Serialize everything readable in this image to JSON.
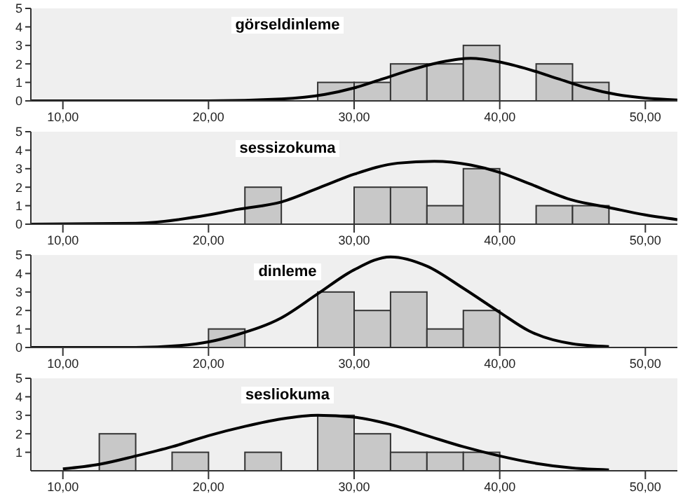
{
  "chart_data": [
    {
      "type": "histogram",
      "title": "görseldinleme",
      "bins": [
        27.5,
        30,
        32.5,
        35,
        37.5,
        40,
        42.5,
        45,
        47.5
      ],
      "values": [
        1,
        1,
        2,
        2,
        3,
        0,
        2,
        1
      ],
      "color": "#c8c8c8",
      "series": [
        {
          "type": "line",
          "color": "#000000",
          "x": [
            7.8,
            20,
            25,
            28,
            30,
            32,
            34,
            36,
            38,
            40,
            42,
            44,
            46,
            48,
            50,
            52.2
          ],
          "values": [
            0,
            0,
            0.1,
            0.35,
            0.7,
            1.2,
            1.7,
            2.1,
            2.3,
            2.1,
            1.7,
            1.2,
            0.7,
            0.35,
            0.15,
            0.05
          ]
        }
      ],
      "xlim": [
        7.8,
        52.2
      ],
      "xticks": [
        {
          "value": 10,
          "label": "10,00"
        },
        {
          "value": 20,
          "label": "20,00"
        },
        {
          "value": 30,
          "label": "30,00"
        },
        {
          "value": 40,
          "label": "40,00"
        },
        {
          "value": 50,
          "label": "50,00"
        }
      ],
      "ylim": [
        0,
        5
      ],
      "yticks": [
        0,
        1,
        2,
        3,
        4,
        5
      ]
    },
    {
      "type": "histogram",
      "title": "sessizokuma",
      "bins": [
        22.5,
        25,
        27.5,
        30,
        32.5,
        35,
        37.5,
        40,
        42.5,
        45,
        47.5
      ],
      "values": [
        2,
        0,
        0,
        2,
        2,
        1,
        3,
        0,
        1,
        1
      ],
      "color": "#c8c8c8",
      "series": [
        {
          "type": "line",
          "color": "#000000",
          "x": [
            7.8,
            15,
            20,
            22,
            25,
            28,
            30,
            33,
            35.5,
            38,
            40,
            42,
            45,
            47.5,
            50,
            52.2
          ],
          "values": [
            0,
            0.05,
            0.5,
            0.8,
            1.2,
            2.1,
            2.7,
            3.3,
            3.4,
            3.2,
            2.8,
            2.2,
            1.3,
            0.9,
            0.5,
            0.25
          ]
        }
      ],
      "xlim": [
        7.8,
        52.2
      ],
      "xticks": [
        {
          "value": 10,
          "label": "10,00"
        },
        {
          "value": 20,
          "label": "20,00"
        },
        {
          "value": 30,
          "label": "30,00"
        },
        {
          "value": 40,
          "label": "40,00"
        },
        {
          "value": 50,
          "label": "50,00"
        }
      ],
      "ylim": [
        0,
        5
      ],
      "yticks": [
        0,
        1,
        2,
        3,
        4,
        5
      ]
    },
    {
      "type": "histogram",
      "title": "dinleme",
      "bins": [
        20,
        22.5,
        25,
        27.5,
        30,
        32.5,
        35,
        37.5,
        40
      ],
      "values": [
        1,
        0,
        0,
        3,
        2,
        3,
        1,
        2
      ],
      "color": "#c8c8c8",
      "series": [
        {
          "type": "line",
          "color": "#000000",
          "x": [
            7.8,
            15,
            18,
            20,
            22,
            25,
            27.5,
            30,
            32.5,
            35,
            37.5,
            40,
            42,
            45,
            47.5
          ],
          "values": [
            0,
            0,
            0.1,
            0.3,
            0.7,
            1.6,
            2.9,
            4.2,
            4.9,
            4.4,
            3.2,
            1.9,
            0.9,
            0.2,
            0.05
          ]
        }
      ],
      "xlim": [
        7.8,
        52.2
      ],
      "xticks": [
        {
          "value": 10,
          "label": "10,00"
        },
        {
          "value": 20,
          "label": "20,00"
        },
        {
          "value": 30,
          "label": "30,00"
        },
        {
          "value": 40,
          "label": "40,00"
        },
        {
          "value": 50,
          "label": "50,00"
        }
      ],
      "ylim": [
        0,
        5
      ],
      "yticks": [
        0,
        1,
        2,
        3,
        4,
        5
      ]
    },
    {
      "type": "histogram",
      "title": "sesliokuma",
      "bins": [
        12.5,
        15,
        17.5,
        20,
        22.5,
        25,
        27.5,
        30,
        32.5,
        35,
        37.5,
        40
      ],
      "values": [
        2,
        0,
        1,
        0,
        1,
        0,
        3,
        2,
        1,
        1,
        1
      ],
      "color": "#c8c8c8",
      "series": [
        {
          "type": "line",
          "color": "#000000",
          "x": [
            10,
            12.5,
            15,
            17.5,
            20,
            22.5,
            25,
            27.5,
            30,
            32.5,
            35,
            37.5,
            40,
            42.5,
            45,
            47.5
          ],
          "values": [
            0.1,
            0.35,
            0.8,
            1.3,
            1.9,
            2.4,
            2.8,
            3.0,
            2.9,
            2.5,
            1.9,
            1.3,
            0.8,
            0.4,
            0.15,
            0.05
          ]
        }
      ],
      "xlim": [
        7.8,
        52.2
      ],
      "xticks": [
        {
          "value": 10,
          "label": "10,00"
        },
        {
          "value": 20,
          "label": "20,00"
        },
        {
          "value": 30,
          "label": "30,00"
        },
        {
          "value": 40,
          "label": "40,00"
        },
        {
          "value": 50,
          "label": "50,00"
        }
      ],
      "ylim": [
        0,
        5
      ],
      "yticks": [
        1,
        2,
        3,
        4,
        5
      ]
    }
  ]
}
